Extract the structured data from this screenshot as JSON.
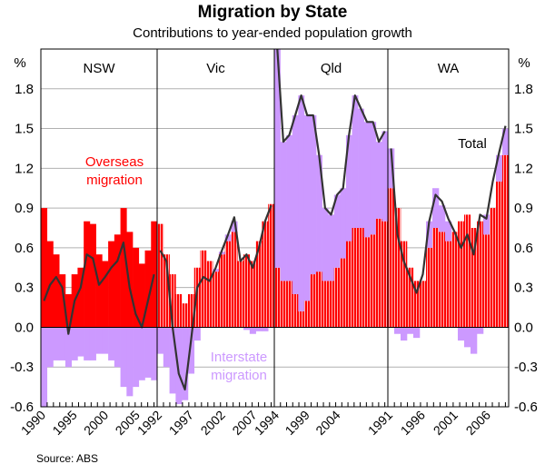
{
  "chart_data": {
    "type": "bar",
    "title": "Migration by State",
    "subtitle": "Contributions to year-ended population growth",
    "ylabel_left": "%",
    "ylabel_right": "%",
    "ylim": [
      -0.6,
      2.1
    ],
    "yticks": [
      "1.8",
      "1.5",
      "1.2",
      "0.9",
      "0.6",
      "0.3",
      "0.0",
      "-0.3",
      "-0.6"
    ],
    "grid": true,
    "source": "Source: ABS",
    "annotations": {
      "overseas": [
        "Overseas",
        "migration"
      ],
      "interstate": [
        "Interstate",
        "migration"
      ],
      "total": "Total"
    },
    "colors": {
      "overseas": "#ff0000",
      "interstate": "#cc99ff",
      "total": "#333333",
      "grid": "#b0b0b0"
    },
    "panels": [
      {
        "name": "NSW",
        "xticks": [
          "1990",
          "1995",
          "2000",
          "2005"
        ],
        "overseas": [
          0.9,
          0.65,
          0.55,
          0.4,
          0.25,
          0.4,
          0.45,
          0.8,
          0.78,
          0.55,
          0.5,
          0.65,
          0.7,
          0.9,
          0.72,
          0.6,
          0.48,
          0.58,
          0.8
        ],
        "interstate": [
          -0.6,
          -0.3,
          -0.25,
          -0.25,
          -0.3,
          -0.25,
          -0.22,
          -0.25,
          -0.25,
          -0.2,
          -0.2,
          -0.25,
          -0.3,
          -0.45,
          -0.52,
          -0.45,
          -0.4,
          -0.38,
          -0.4
        ],
        "total": [
          0.2,
          0.32,
          0.38,
          0.3,
          -0.05,
          0.2,
          0.3,
          0.55,
          0.52,
          0.32,
          0.38,
          0.45,
          0.5,
          0.64,
          0.3,
          0.1,
          0.0,
          0.2,
          0.4
        ]
      },
      {
        "name": "Vic",
        "xticks": [
          "1992",
          "1997",
          "2002",
          "2007"
        ],
        "overseas": [
          0.78,
          0.55,
          0.4,
          0.25,
          0.18,
          0.25,
          0.45,
          0.58,
          0.5,
          0.42,
          0.55,
          0.65,
          0.72,
          0.5,
          0.55,
          0.5,
          0.65,
          0.8,
          0.93
        ],
        "interstate": [
          -0.2,
          -0.3,
          -0.5,
          -0.58,
          -0.55,
          -0.35,
          -0.1,
          0,
          0,
          0.02,
          0.02,
          0.05,
          0.08,
          0,
          -0.02,
          -0.05,
          -0.03,
          -0.03,
          0
        ],
        "total": [
          0.58,
          0.5,
          0.0,
          -0.35,
          -0.47,
          -0.1,
          0.3,
          0.38,
          0.35,
          0.45,
          0.58,
          0.7,
          0.83,
          0.5,
          0.55,
          0.45,
          0.6,
          0.8,
          0.92
        ]
      },
      {
        "name": "Qld",
        "xticks": [
          "1994",
          "1999",
          "2004"
        ],
        "overseas": [
          0.45,
          0.35,
          0.35,
          0.25,
          0.12,
          0.2,
          0.4,
          0.42,
          0.35,
          0.35,
          0.45,
          0.52,
          0.65,
          0.75,
          0.75,
          0.68,
          0.7,
          0.82,
          0.8
        ],
        "interstate": [
          1.65,
          1.05,
          1.1,
          1.35,
          1.63,
          1.4,
          1.2,
          0.88,
          0.55,
          0.5,
          0.55,
          0.53,
          0.8,
          1.0,
          0.9,
          0.87,
          0.85,
          0.58,
          0.68
        ],
        "total": [
          2.1,
          1.4,
          1.45,
          1.6,
          1.75,
          1.6,
          1.6,
          1.3,
          0.9,
          0.85,
          1.0,
          1.05,
          1.45,
          1.75,
          1.65,
          1.55,
          1.55,
          1.4,
          1.48
        ]
      },
      {
        "name": "WA",
        "xticks": [
          "1991",
          "1996",
          "2001",
          "2006"
        ],
        "overseas": [
          1.05,
          0.9,
          0.65,
          0.45,
          0.35,
          0.35,
          0.6,
          0.75,
          0.72,
          0.65,
          0.72,
          0.8,
          0.85,
          0.75,
          0.8,
          0.7,
          0.9,
          1.1,
          1.3
        ],
        "interstate": [
          0.3,
          -0.05,
          -0.1,
          -0.05,
          -0.08,
          0.0,
          0.2,
          0.3,
          0.2,
          0.15,
          0.0,
          -0.1,
          -0.15,
          -0.2,
          -0.05,
          0.15,
          0.0,
          0.2,
          0.2
        ],
        "total": [
          1.35,
          0.7,
          0.5,
          0.38,
          0.26,
          0.4,
          0.8,
          1.0,
          0.95,
          0.82,
          0.72,
          0.6,
          0.7,
          0.55,
          0.85,
          0.82,
          1.1,
          1.32,
          1.52
        ]
      }
    ]
  }
}
